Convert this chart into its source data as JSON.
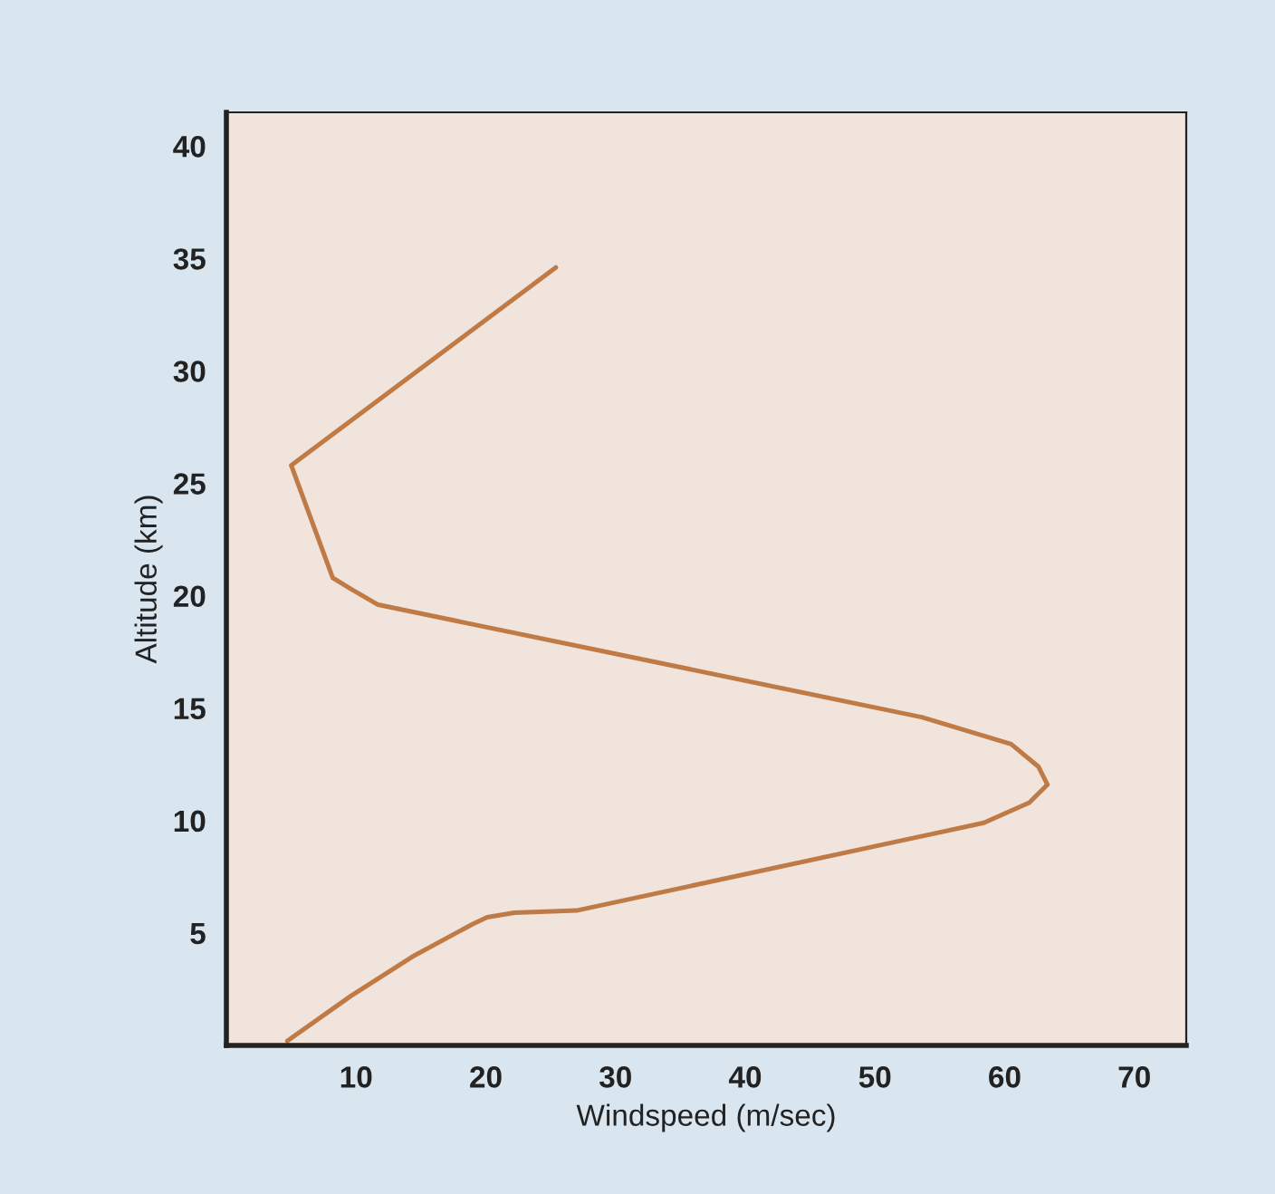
{
  "chart_data": {
    "type": "line",
    "xlabel": "Windspeed (m/sec)",
    "ylabel": "Altitude (km)",
    "series": [
      {
        "color": "#c07a45",
        "x": [
          4.7,
          9.6,
          14.5,
          19,
          20.1,
          22.2,
          27,
          58.4,
          61.9,
          63.3,
          62.6,
          60.5,
          53.6,
          11.7,
          9.6,
          8.2,
          5,
          25.4
        ],
        "values": [
          0.2,
          2.2,
          4.0,
          5.4,
          5.7,
          5.9,
          6.0,
          9.9,
          10.8,
          11.6,
          12.4,
          13.4,
          14.6,
          19.6,
          20.3,
          20.8,
          25.8,
          34.6
        ]
      }
    ],
    "xlim": [
      0,
      74
    ],
    "ylim": [
      0,
      41.5
    ],
    "xticks": [
      10,
      20,
      30,
      40,
      50,
      60,
      70
    ],
    "yticks": [
      5,
      10,
      15,
      20,
      25,
      30,
      35,
      40
    ],
    "grid": false,
    "legend": false,
    "marker": "none",
    "line_style": "solid"
  }
}
